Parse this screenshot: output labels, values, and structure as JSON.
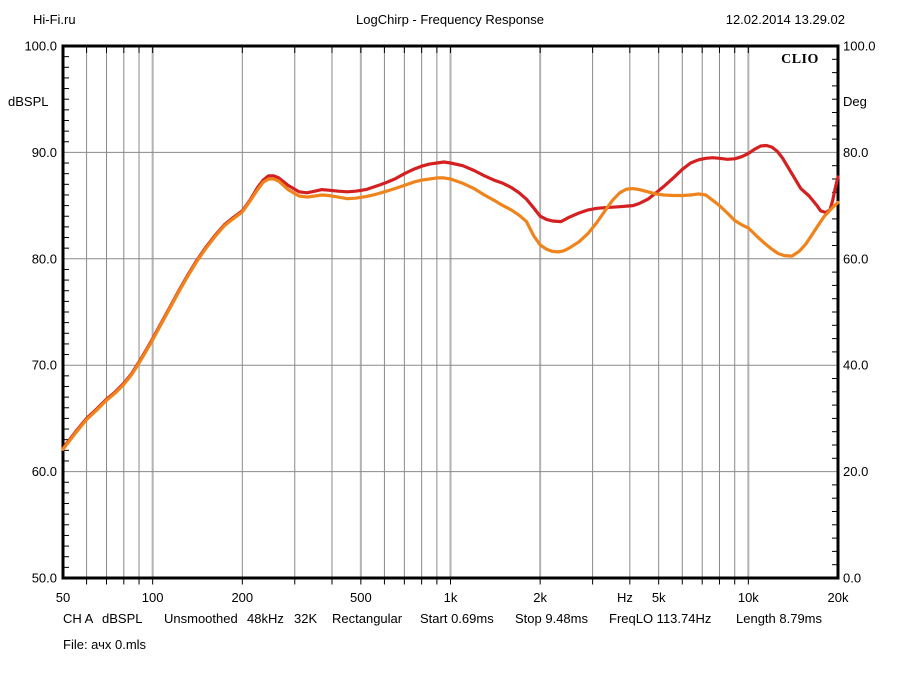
{
  "header": {
    "site": "Hi-Fi.ru",
    "title": "LogChirp - Frequency Response",
    "datetime": "12.02.2014 13.29.02"
  },
  "branding": {
    "logo": "CLIO"
  },
  "status_line": {
    "tokens": [
      "CH A",
      "dBSPL",
      "Unsmoothed",
      "48kHz",
      "32K",
      "Rectangular",
      "Start 0.69ms",
      "Stop 9.48ms",
      "FreqLO 113.74Hz",
      "Length 8.79ms"
    ]
  },
  "file_line": "File: ачх 0.mls",
  "chart_data": {
    "type": "line",
    "title": "LogChirp - Frequency Response",
    "x_scale": "log",
    "x_range": [
      50,
      20000
    ],
    "x_unit_label": "Hz",
    "xticks": {
      "values": [
        50,
        100,
        200,
        500,
        1000,
        2000,
        5000,
        10000,
        20000
      ],
      "labels": [
        "50",
        "100",
        "200",
        "500",
        "1k",
        "2k",
        "5k",
        "10k",
        "20k"
      ]
    },
    "grid_freqs": [
      60,
      70,
      80,
      90,
      100,
      200,
      300,
      400,
      500,
      600,
      700,
      800,
      900,
      1000,
      2000,
      3000,
      4000,
      5000,
      6000,
      7000,
      8000,
      9000,
      10000
    ],
    "grid_freqs_emphasis": [
      100,
      500,
      1000,
      2000,
      10000
    ],
    "left_axis": {
      "label": "dBSPL",
      "range": [
        50,
        100
      ],
      "tick_values": [
        100,
        90,
        80,
        70,
        60,
        50
      ],
      "tick_labels": [
        "100.0",
        "90.0",
        "80.0",
        "70.0",
        "60.0",
        "50.0"
      ]
    },
    "right_axis": {
      "label": "Deg",
      "range": [
        0,
        100
      ],
      "tick_values": [
        100,
        80,
        60,
        40,
        20,
        0
      ],
      "tick_labels": [
        "100.0",
        "80.0",
        "60.0",
        "40.0",
        "20.0",
        "0.0"
      ]
    },
    "hgrid_db": [
      90,
      80,
      70,
      60
    ],
    "grid_color": "#8a8a8a",
    "grid_color_emphasis": "#b2b2b2",
    "series": [
      {
        "name": "response-red",
        "color": "#d42020",
        "points": [
          [
            50,
            62.2
          ],
          [
            55,
            63.7
          ],
          [
            60,
            65.0
          ],
          [
            65,
            65.9
          ],
          [
            70,
            66.8
          ],
          [
            75,
            67.5
          ],
          [
            80,
            68.3
          ],
          [
            85,
            69.2
          ],
          [
            90,
            70.3
          ],
          [
            95,
            71.4
          ],
          [
            100,
            72.5
          ],
          [
            107,
            74.0
          ],
          [
            115,
            75.6
          ],
          [
            123,
            77.1
          ],
          [
            132,
            78.6
          ],
          [
            141,
            79.9
          ],
          [
            151,
            81.1
          ],
          [
            162,
            82.2
          ],
          [
            174,
            83.2
          ],
          [
            187,
            83.9
          ],
          [
            200,
            84.5
          ],
          [
            212,
            85.5
          ],
          [
            225,
            86.7
          ],
          [
            235,
            87.4
          ],
          [
            245,
            87.8
          ],
          [
            255,
            87.8
          ],
          [
            265,
            87.6
          ],
          [
            285,
            86.9
          ],
          [
            310,
            86.3
          ],
          [
            330,
            86.2
          ],
          [
            350,
            86.35
          ],
          [
            370,
            86.5
          ],
          [
            390,
            86.45
          ],
          [
            420,
            86.35
          ],
          [
            450,
            86.3
          ],
          [
            480,
            86.35
          ],
          [
            520,
            86.5
          ],
          [
            560,
            86.8
          ],
          [
            600,
            87.1
          ],
          [
            650,
            87.5
          ],
          [
            700,
            88.0
          ],
          [
            750,
            88.4
          ],
          [
            800,
            88.7
          ],
          [
            850,
            88.9
          ],
          [
            900,
            89.0
          ],
          [
            950,
            89.1
          ],
          [
            1000,
            89.0
          ],
          [
            1100,
            88.75
          ],
          [
            1200,
            88.3
          ],
          [
            1300,
            87.8
          ],
          [
            1400,
            87.4
          ],
          [
            1500,
            87.1
          ],
          [
            1600,
            86.7
          ],
          [
            1700,
            86.2
          ],
          [
            1800,
            85.6
          ],
          [
            1900,
            84.8
          ],
          [
            2000,
            84.0
          ],
          [
            2100,
            83.7
          ],
          [
            2200,
            83.55
          ],
          [
            2350,
            83.5
          ],
          [
            2500,
            83.9
          ],
          [
            2700,
            84.3
          ],
          [
            2900,
            84.6
          ],
          [
            3100,
            84.75
          ],
          [
            3300,
            84.8
          ],
          [
            3500,
            84.85
          ],
          [
            3700,
            84.9
          ],
          [
            3900,
            84.95
          ],
          [
            4100,
            85.0
          ],
          [
            4300,
            85.2
          ],
          [
            4600,
            85.6
          ],
          [
            4900,
            86.2
          ],
          [
            5200,
            86.8
          ],
          [
            5600,
            87.6
          ],
          [
            6000,
            88.4
          ],
          [
            6400,
            89.0
          ],
          [
            6800,
            89.3
          ],
          [
            7200,
            89.45
          ],
          [
            7600,
            89.5
          ],
          [
            8000,
            89.45
          ],
          [
            8500,
            89.35
          ],
          [
            9000,
            89.4
          ],
          [
            9500,
            89.6
          ],
          [
            10000,
            89.9
          ],
          [
            10500,
            90.3
          ],
          [
            11000,
            90.6
          ],
          [
            11500,
            90.65
          ],
          [
            12000,
            90.5
          ],
          [
            12500,
            90.1
          ],
          [
            13000,
            89.5
          ],
          [
            14000,
            88.0
          ],
          [
            15000,
            86.6
          ],
          [
            16000,
            85.9
          ],
          [
            17000,
            85.0
          ],
          [
            17500,
            84.5
          ],
          [
            18200,
            84.35
          ],
          [
            18800,
            84.6
          ],
          [
            19200,
            85.5
          ],
          [
            19600,
            86.7
          ],
          [
            20000,
            87.7
          ]
        ]
      },
      {
        "name": "response-orange",
        "color": "#ef841c",
        "points": [
          [
            50,
            62.1
          ],
          [
            55,
            63.6
          ],
          [
            60,
            64.9
          ],
          [
            65,
            65.8
          ],
          [
            70,
            66.7
          ],
          [
            75,
            67.4
          ],
          [
            80,
            68.2
          ],
          [
            85,
            69.1
          ],
          [
            90,
            70.2
          ],
          [
            95,
            71.3
          ],
          [
            100,
            72.4
          ],
          [
            107,
            73.9
          ],
          [
            115,
            75.5
          ],
          [
            123,
            77.0
          ],
          [
            132,
            78.5
          ],
          [
            141,
            79.8
          ],
          [
            151,
            81.0
          ],
          [
            162,
            82.1
          ],
          [
            174,
            83.1
          ],
          [
            187,
            83.8
          ],
          [
            200,
            84.4
          ],
          [
            212,
            85.4
          ],
          [
            225,
            86.5
          ],
          [
            235,
            87.2
          ],
          [
            245,
            87.5
          ],
          [
            255,
            87.5
          ],
          [
            265,
            87.3
          ],
          [
            285,
            86.5
          ],
          [
            310,
            85.9
          ],
          [
            330,
            85.8
          ],
          [
            350,
            85.9
          ],
          [
            370,
            86.0
          ],
          [
            390,
            85.95
          ],
          [
            420,
            85.8
          ],
          [
            450,
            85.65
          ],
          [
            480,
            85.7
          ],
          [
            520,
            85.85
          ],
          [
            560,
            86.05
          ],
          [
            600,
            86.3
          ],
          [
            650,
            86.6
          ],
          [
            700,
            86.9
          ],
          [
            750,
            87.2
          ],
          [
            800,
            87.4
          ],
          [
            850,
            87.5
          ],
          [
            900,
            87.6
          ],
          [
            950,
            87.6
          ],
          [
            1000,
            87.5
          ],
          [
            1100,
            87.1
          ],
          [
            1200,
            86.6
          ],
          [
            1300,
            86.0
          ],
          [
            1400,
            85.5
          ],
          [
            1500,
            85.0
          ],
          [
            1600,
            84.6
          ],
          [
            1700,
            84.1
          ],
          [
            1800,
            83.5
          ],
          [
            1900,
            82.2
          ],
          [
            2000,
            81.3
          ],
          [
            2100,
            80.9
          ],
          [
            2200,
            80.7
          ],
          [
            2300,
            80.65
          ],
          [
            2400,
            80.75
          ],
          [
            2500,
            81.0
          ],
          [
            2700,
            81.6
          ],
          [
            2900,
            82.4
          ],
          [
            3100,
            83.4
          ],
          [
            3300,
            84.5
          ],
          [
            3500,
            85.5
          ],
          [
            3700,
            86.2
          ],
          [
            3900,
            86.55
          ],
          [
            4100,
            86.6
          ],
          [
            4300,
            86.5
          ],
          [
            4600,
            86.3
          ],
          [
            4900,
            86.1
          ],
          [
            5200,
            86.0
          ],
          [
            5600,
            85.95
          ],
          [
            6000,
            85.95
          ],
          [
            6400,
            86.0
          ],
          [
            6800,
            86.1
          ],
          [
            7200,
            86.0
          ],
          [
            7600,
            85.5
          ],
          [
            8000,
            85.0
          ],
          [
            8500,
            84.3
          ],
          [
            9000,
            83.6
          ],
          [
            9500,
            83.2
          ],
          [
            10000,
            82.9
          ],
          [
            10700,
            82.1
          ],
          [
            11400,
            81.4
          ],
          [
            12000,
            80.9
          ],
          [
            12600,
            80.5
          ],
          [
            13200,
            80.3
          ],
          [
            14000,
            80.25
          ],
          [
            14800,
            80.7
          ],
          [
            15600,
            81.4
          ],
          [
            16400,
            82.3
          ],
          [
            17200,
            83.2
          ],
          [
            18000,
            84.0
          ],
          [
            18700,
            84.5
          ],
          [
            19300,
            84.9
          ],
          [
            20000,
            85.3
          ]
        ]
      }
    ]
  }
}
